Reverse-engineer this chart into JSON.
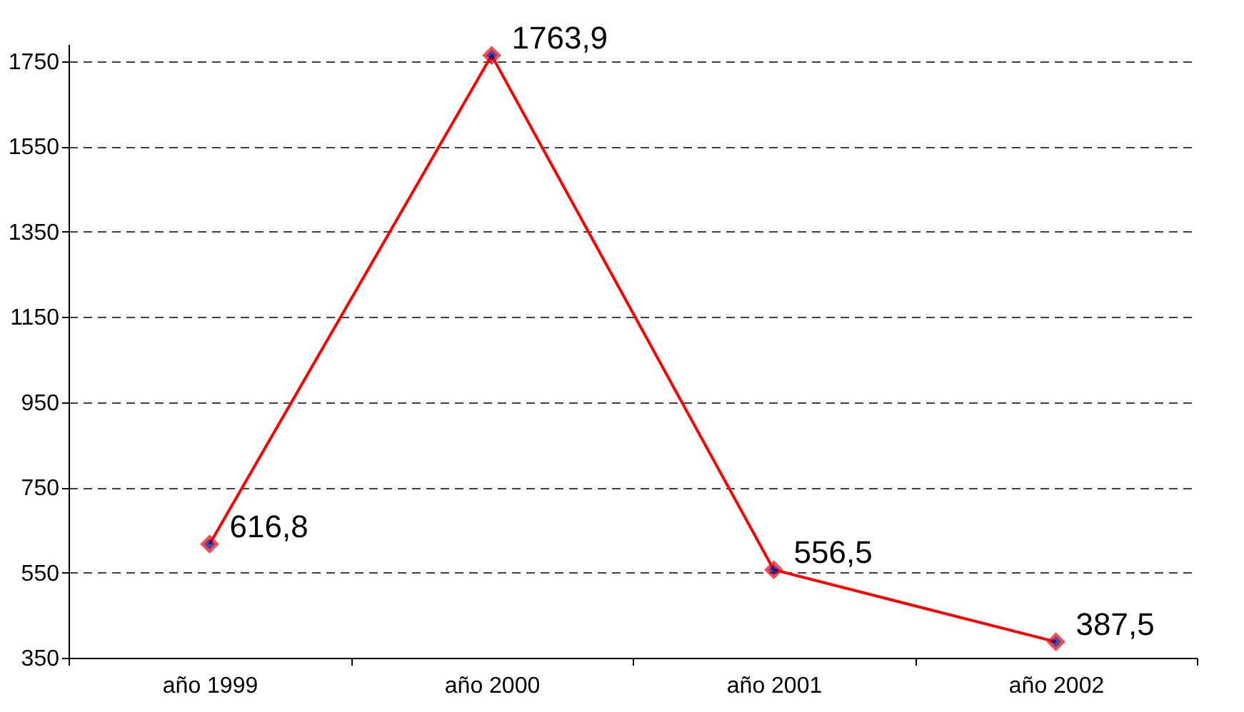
{
  "chart_data": {
    "type": "line",
    "categories": [
      "año 1999",
      "año 2000",
      "año 2001",
      "año 2002"
    ],
    "series": [
      {
        "color": "#ff0000",
        "values": [
          616.8,
          1763.9,
          556.5,
          387.5
        ],
        "value_labels": [
          "616,8",
          "1763,9",
          "556,5",
          "387,5"
        ]
      }
    ],
    "ylim": [
      350,
      1790
    ],
    "yticks": [
      350,
      550,
      750,
      950,
      1150,
      1350,
      1550,
      1750
    ],
    "grid": "y",
    "marker": "diamond",
    "line_style": "solid",
    "legend": false
  }
}
